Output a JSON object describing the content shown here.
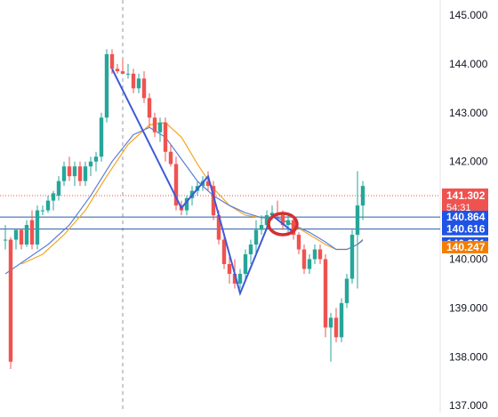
{
  "chart_data": {
    "type": "candlestick",
    "title": "",
    "xlabel": "",
    "ylabel": "",
    "ylim": [
      137.0,
      145.4
    ],
    "grid": false,
    "y_ticks": [
      "145.000",
      "144.000",
      "143.000",
      "142.000",
      "141.000",
      "140.000",
      "139.000",
      "138.000",
      "137.000"
    ],
    "y_tick_values": [
      145.0,
      144.0,
      143.0,
      142.0,
      141.0,
      140.0,
      139.0,
      138.0,
      137.0
    ],
    "current_price": {
      "label": "141.302",
      "value": 141.302,
      "countdown": "54:31",
      "color": "#ef5350"
    },
    "price_labels": [
      {
        "label": "140.864",
        "value": 140.864,
        "color": "#1e53e5"
      },
      {
        "label": "140.616",
        "value": 140.616,
        "color": "#1e53e5"
      },
      {
        "label": "140.321",
        "value": 140.321,
        "color": "#1e53e5"
      },
      {
        "label": "140.247",
        "value": 140.247,
        "color": "#f57c00"
      }
    ],
    "horizontal_lines": [
      {
        "value": 140.864,
        "color": "#2a5ca8"
      },
      {
        "value": 140.616,
        "color": "#2a5ca8"
      }
    ],
    "colors": {
      "up": "#26a69a",
      "down": "#ef5350",
      "ma_blue": "#5b7fd6",
      "ma_orange": "#f5a623",
      "zigzag": "#3d5ad8",
      "marker": "#d32f2f"
    },
    "candles": [
      [
        140.4,
        140.7,
        140.2,
        140.4
      ],
      [
        140.4,
        140.45,
        137.75,
        137.9
      ],
      [
        140.4,
        140.6,
        140.2,
        140.6
      ],
      [
        140.6,
        140.62,
        140.2,
        140.3
      ],
      [
        140.3,
        140.8,
        140.25,
        140.7
      ],
      [
        140.8,
        141.0,
        140.2,
        140.3
      ],
      [
        140.3,
        141.1,
        140.2,
        141.0
      ],
      [
        141.0,
        141.1,
        140.9,
        141.0
      ],
      [
        141.0,
        141.3,
        140.95,
        141.2
      ],
      [
        141.2,
        141.4,
        141.0,
        141.35
      ],
      [
        141.3,
        141.7,
        141.2,
        141.6
      ],
      [
        141.6,
        142.0,
        141.5,
        141.9
      ],
      [
        141.9,
        142.1,
        141.6,
        141.7
      ],
      [
        141.7,
        142.0,
        141.5,
        141.9
      ],
      [
        141.9,
        142.0,
        141.5,
        141.6
      ],
      [
        141.6,
        142.0,
        141.5,
        141.9
      ],
      [
        141.9,
        142.1,
        141.7,
        142.0
      ],
      [
        142.0,
        142.2,
        141.8,
        142.1
      ],
      [
        142.1,
        143.0,
        142.0,
        142.9
      ],
      [
        142.9,
        144.3,
        142.8,
        144.2
      ],
      [
        144.2,
        144.3,
        143.8,
        143.9
      ],
      [
        143.9,
        144.0,
        143.8,
        143.85
      ],
      [
        143.85,
        144.1,
        143.8,
        143.8
      ],
      [
        143.8,
        144.0,
        143.7,
        143.8
      ],
      [
        143.8,
        143.9,
        143.4,
        143.5
      ],
      [
        143.5,
        143.8,
        143.4,
        143.7
      ],
      [
        143.7,
        143.85,
        143.2,
        143.3
      ],
      [
        143.3,
        143.4,
        142.7,
        142.9
      ],
      [
        142.9,
        143.0,
        142.5,
        142.6
      ],
      [
        142.6,
        142.9,
        142.4,
        142.8
      ],
      [
        142.8,
        142.9,
        142.0,
        142.2
      ],
      [
        142.2,
        142.35,
        141.9,
        141.95
      ],
      [
        141.95,
        142.1,
        141.0,
        141.1
      ],
      [
        141.1,
        141.2,
        140.9,
        141.0
      ],
      [
        141.0,
        141.3,
        140.9,
        141.25
      ],
      [
        141.25,
        141.5,
        141.1,
        141.4
      ],
      [
        141.4,
        141.6,
        141.3,
        141.5
      ],
      [
        141.5,
        141.7,
        141.4,
        141.6
      ],
      [
        141.6,
        141.8,
        141.4,
        141.5
      ],
      [
        141.5,
        141.6,
        140.8,
        140.9
      ],
      [
        140.9,
        141.0,
        140.3,
        140.4
      ],
      [
        140.4,
        140.5,
        139.8,
        139.9
      ],
      [
        139.9,
        140.1,
        139.5,
        139.7
      ],
      [
        139.7,
        140.0,
        139.4,
        139.5
      ],
      [
        139.5,
        139.8,
        139.4,
        139.7
      ],
      [
        139.7,
        140.2,
        139.6,
        140.1
      ],
      [
        140.1,
        140.4,
        139.9,
        140.3
      ],
      [
        140.3,
        140.8,
        140.1,
        140.6
      ],
      [
        140.6,
        140.9,
        140.5,
        140.7
      ],
      [
        140.7,
        141.0,
        140.6,
        140.9
      ],
      [
        140.9,
        141.1,
        140.8,
        140.95
      ],
      [
        140.95,
        141.2,
        140.8,
        140.9
      ],
      [
        140.9,
        141.0,
        140.6,
        140.7
      ],
      [
        140.7,
        140.9,
        140.5,
        140.8
      ],
      [
        140.8,
        140.9,
        140.4,
        140.5
      ],
      [
        140.5,
        140.55,
        140.1,
        140.2
      ],
      [
        140.2,
        140.3,
        139.7,
        139.8
      ],
      [
        139.8,
        140.1,
        139.7,
        140.0
      ],
      [
        140.0,
        140.3,
        139.9,
        140.2
      ],
      [
        140.2,
        140.3,
        139.9,
        140.0
      ],
      [
        140.0,
        140.1,
        138.4,
        138.6
      ],
      [
        138.6,
        138.9,
        137.9,
        138.8
      ],
      [
        138.8,
        139.0,
        138.3,
        138.4
      ],
      [
        138.4,
        139.2,
        138.3,
        139.1
      ],
      [
        139.1,
        139.7,
        139.0,
        139.6
      ],
      [
        139.6,
        140.6,
        139.5,
        140.5
      ],
      [
        140.5,
        141.8,
        139.4,
        141.1
      ],
      [
        141.1,
        141.6,
        140.8,
        141.5
      ]
    ],
    "ma_blue": [
      [
        0,
        139.7
      ],
      [
        4,
        140.0
      ],
      [
        8,
        140.3
      ],
      [
        12,
        140.7
      ],
      [
        16,
        141.3
      ],
      [
        20,
        142.0
      ],
      [
        24,
        142.55
      ],
      [
        27,
        142.7
      ],
      [
        30,
        142.5
      ],
      [
        33,
        142.05
      ],
      [
        36,
        141.6
      ],
      [
        39,
        141.3
      ],
      [
        42,
        141.1
      ],
      [
        45,
        140.95
      ],
      [
        48,
        140.85
      ],
      [
        51,
        140.85
      ],
      [
        54,
        140.7
      ],
      [
        57,
        140.55
      ],
      [
        60,
        140.35
      ],
      [
        62,
        140.2
      ],
      [
        64,
        140.2
      ],
      [
        66,
        140.3
      ],
      [
        67,
        140.4
      ]
    ],
    "ma_orange": [
      [
        3,
        139.9
      ],
      [
        7,
        140.1
      ],
      [
        11,
        140.5
      ],
      [
        15,
        141.0
      ],
      [
        19,
        141.7
      ],
      [
        23,
        142.35
      ],
      [
        27,
        142.75
      ],
      [
        30,
        142.8
      ],
      [
        33,
        142.5
      ],
      [
        36,
        141.95
      ],
      [
        39,
        141.45
      ],
      [
        42,
        141.1
      ],
      [
        45,
        140.9
      ],
      [
        48,
        140.85
      ],
      [
        51,
        140.85
      ],
      [
        54,
        140.7
      ],
      [
        57,
        140.5
      ],
      [
        60,
        140.3
      ],
      [
        62,
        140.2
      ],
      [
        64,
        140.2
      ],
      [
        66,
        140.3
      ],
      [
        67,
        140.38
      ]
    ],
    "zigzag": [
      [
        20,
        143.9
      ],
      [
        33,
        141.05
      ],
      [
        38,
        141.7
      ],
      [
        44,
        139.3
      ],
      [
        50,
        140.9
      ],
      [
        54,
        140.55
      ]
    ],
    "marker": {
      "index": 52,
      "value": 140.72
    },
    "time_marker_index": 22
  }
}
